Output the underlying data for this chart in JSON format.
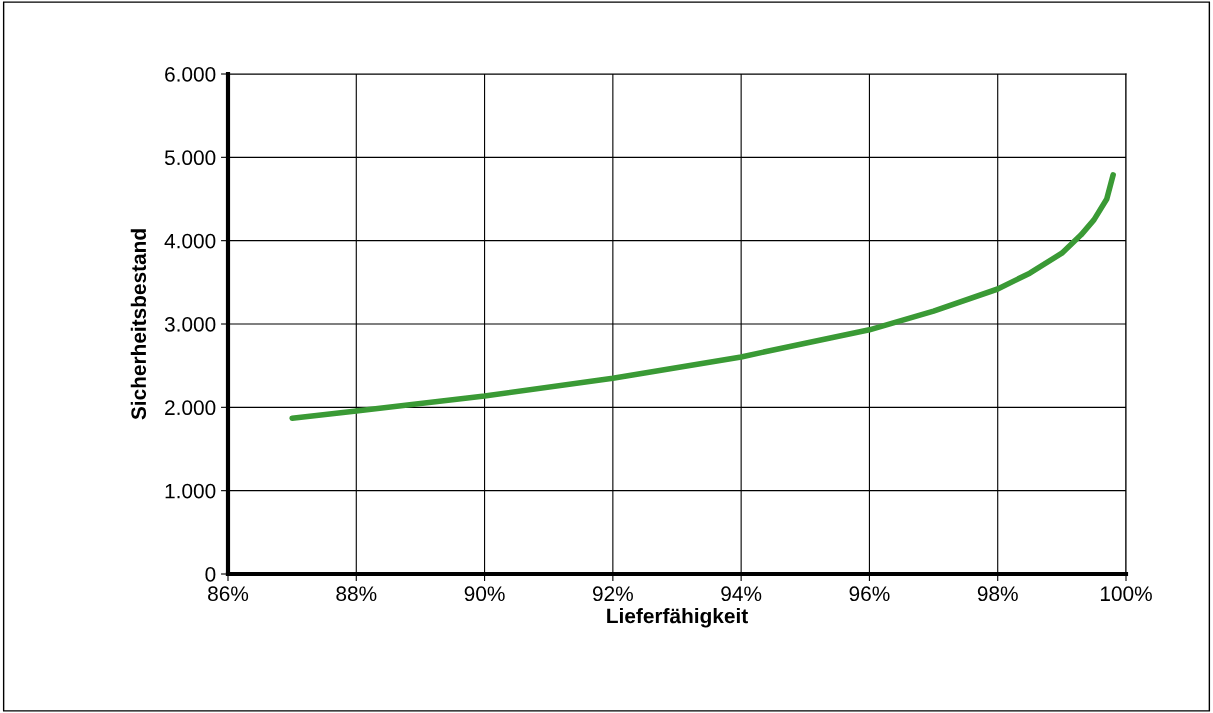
{
  "chart_data": {
    "type": "line",
    "xlabel": "Lieferfähigkeit",
    "ylabel": "Sicherheitsbestand",
    "x": [
      87,
      88,
      90,
      92,
      94,
      95,
      96,
      97,
      98,
      98.5,
      99,
      99.3,
      99.5,
      99.7,
      99.8
    ],
    "series": [
      {
        "color": "#3a9a35",
        "values": [
          1870,
          1955,
          2135,
          2350,
          2605,
          2770,
          2930,
          3155,
          3420,
          3610,
          3850,
          4070,
          4250,
          4500,
          4790
        ]
      }
    ],
    "xlim": [
      86,
      100
    ],
    "xticks": [
      {
        "value": 86,
        "label": "86%"
      },
      {
        "value": 88,
        "label": "88%"
      },
      {
        "value": 90,
        "label": "90%"
      },
      {
        "value": 92,
        "label": "92%"
      },
      {
        "value": 94,
        "label": "94%"
      },
      {
        "value": 96,
        "label": "96%"
      },
      {
        "value": 98,
        "label": "98%"
      },
      {
        "value": 100,
        "label": "100%"
      }
    ],
    "ylim": [
      0,
      6000
    ],
    "yticks": [
      0,
      {
        "value": 1000,
        "label": "1.000"
      },
      {
        "value": 2000,
        "label": "2.000"
      },
      {
        "value": 3000,
        "label": "3.000"
      },
      {
        "value": 4000,
        "label": "4.000"
      },
      {
        "value": 5000,
        "label": "5.000"
      },
      {
        "value": 6000,
        "label": "6.000"
      }
    ],
    "grid": true,
    "legend": false,
    "marker": "none",
    "line_style": "solid"
  }
}
